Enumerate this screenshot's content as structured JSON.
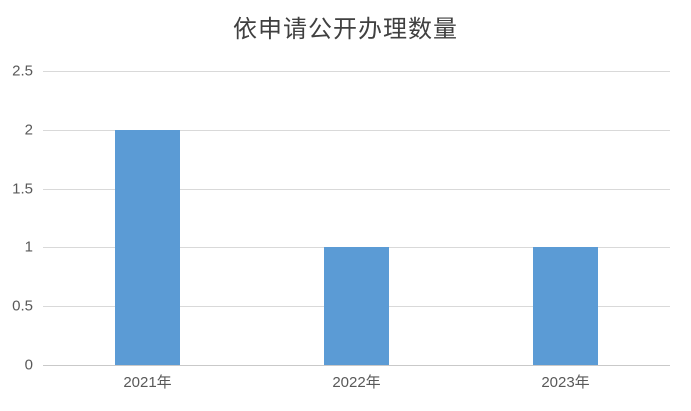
{
  "chart_data": {
    "type": "bar",
    "title": "依申请公开办理数量",
    "categories": [
      "2021年",
      "2022年",
      "2023年"
    ],
    "values": [
      2,
      1,
      1
    ],
    "xlabel": "",
    "ylabel": "",
    "ylim": [
      0,
      2.5
    ],
    "ytick_step": 0.5,
    "ytick_labels": [
      "0",
      "0.5",
      "1",
      "1.5",
      "2",
      "2.5"
    ],
    "grid": true,
    "legend": false,
    "colors": {
      "bar": "#5B9BD5",
      "gridline": "#D9D9D9",
      "axis_line": "#C9C9C9",
      "tick_label": "#595959",
      "title": "#404040",
      "background": "#FFFFFF"
    }
  }
}
